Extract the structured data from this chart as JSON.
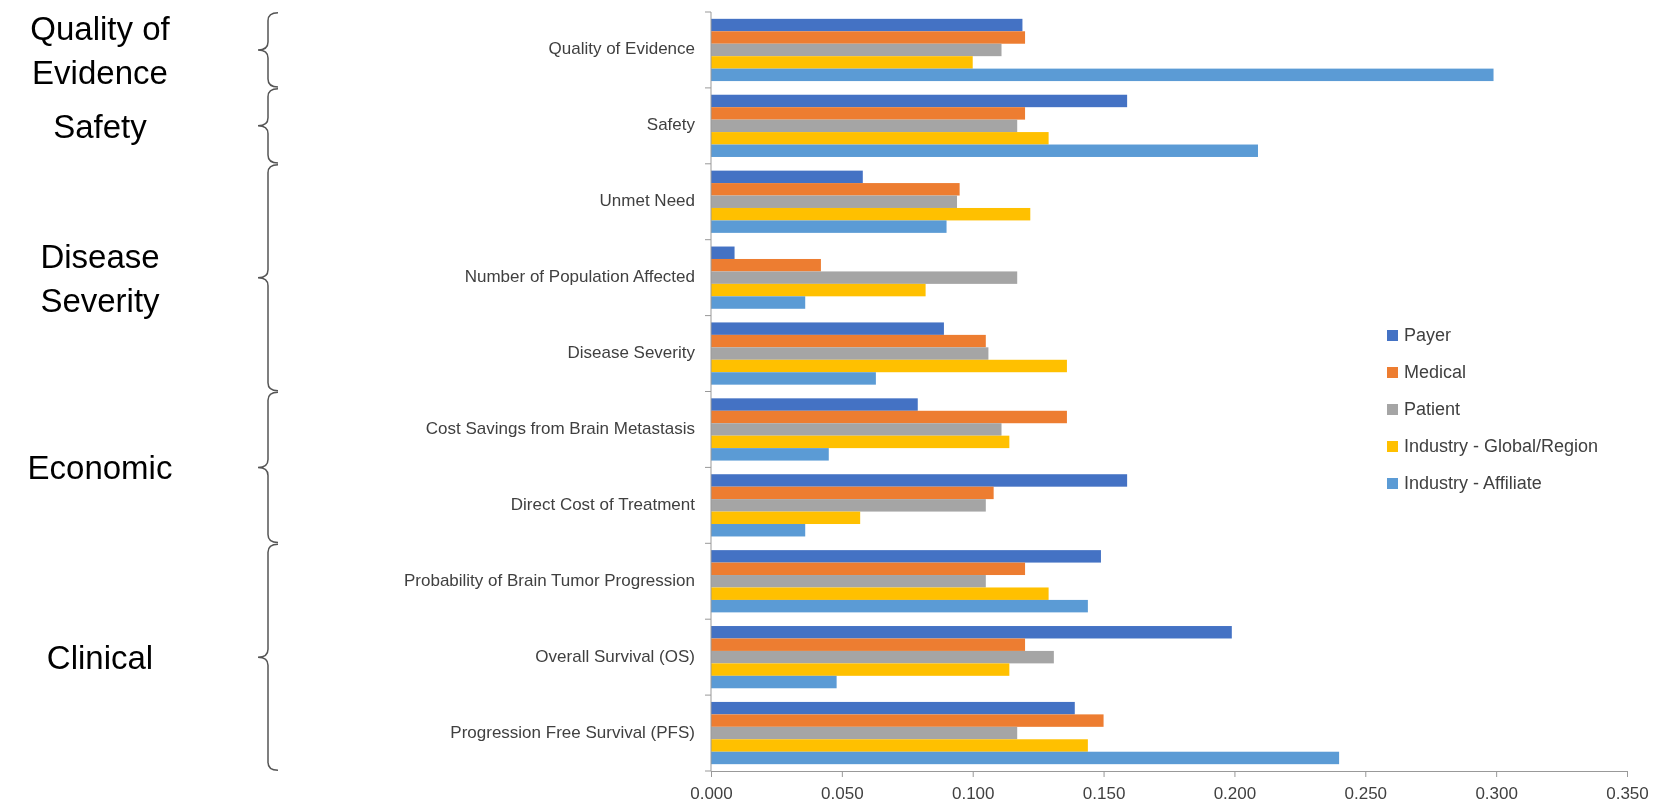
{
  "chart_data": {
    "type": "bar",
    "orientation": "horizontal",
    "categories": [
      "Quality of Evidence",
      "Safety",
      "Unmet Need",
      "Number of Population Affected",
      "Disease Severity",
      "Cost Savings from Brain Metastasis",
      "Direct Cost of Treatment",
      "Probability of Brain Tumor Progression",
      "Overall Survival (OS)",
      "Progression Free Survival (PFS)"
    ],
    "series": [
      {
        "name": "Payer",
        "color": "#4472c4",
        "values": [
          0.119,
          0.159,
          0.058,
          0.009,
          0.089,
          0.079,
          0.159,
          0.149,
          0.199,
          0.139
        ]
      },
      {
        "name": "Medical",
        "color": "#ed7d31",
        "values": [
          0.12,
          0.12,
          0.095,
          0.042,
          0.105,
          0.136,
          0.108,
          0.12,
          0.12,
          0.15
        ]
      },
      {
        "name": "Patient",
        "color": "#a5a5a5",
        "values": [
          0.111,
          0.117,
          0.094,
          0.117,
          0.106,
          0.111,
          0.105,
          0.105,
          0.131,
          0.117
        ]
      },
      {
        "name": "Industry - Global/Region",
        "color": "#ffc000",
        "values": [
          0.1,
          0.129,
          0.122,
          0.082,
          0.136,
          0.114,
          0.057,
          0.129,
          0.114,
          0.144
        ]
      },
      {
        "name": "Industry - Affiliate",
        "color": "#5b9bd5",
        "values": [
          0.299,
          0.209,
          0.09,
          0.036,
          0.063,
          0.045,
          0.036,
          0.144,
          0.048,
          0.24
        ]
      }
    ],
    "xlim": [
      0,
      0.35
    ],
    "xticks": [
      {
        "value": 0,
        "label": "0.000"
      },
      {
        "value": 0.05,
        "label": "0.050"
      },
      {
        "value": 0.1,
        "label": "0.100"
      },
      {
        "value": 0.15,
        "label": "0.150"
      },
      {
        "value": 0.2,
        "label": "0.200"
      },
      {
        "value": 0.25,
        "label": "0.250"
      },
      {
        "value": 0.3,
        "label": "0.300"
      },
      {
        "value": 0.35,
        "label": "0.350"
      }
    ],
    "legend": "right",
    "annotations": [
      "Quality of Evidence",
      "Safety",
      "Disease Severity",
      "Economic",
      "Clinical"
    ]
  }
}
